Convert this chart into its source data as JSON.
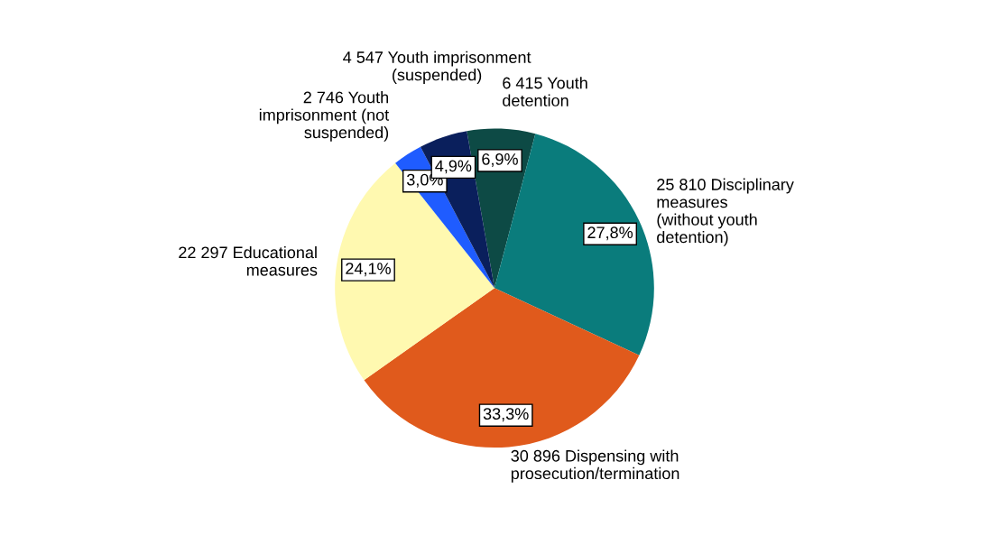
{
  "chart_data": {
    "type": "pie",
    "categories": [
      "6 415 Youth\ndetention",
      "25 810 Disciplinary\nmeasures\n(without youth\ndetention)",
      "30 896 Dispensing with\nprosecution/termination",
      "22 297 Educational\nmeasures",
      "2 746 Youth\nimprisonment (not\nsuspended)",
      "4 547 Youth imprisonment\n(suspended)"
    ],
    "values": [
      6.9,
      27.8,
      33.3,
      24.1,
      3.0,
      4.9
    ],
    "colors": [
      "#0d4a45",
      "#0a7c7c",
      "#e05a1c",
      "#fff9b0",
      "#1f5cff",
      "#0a1f5c"
    ],
    "value_labels": [
      "6,9%",
      "27,8%",
      "33,3%",
      "24,1%",
      "3,0%",
      "4,9%"
    ]
  }
}
